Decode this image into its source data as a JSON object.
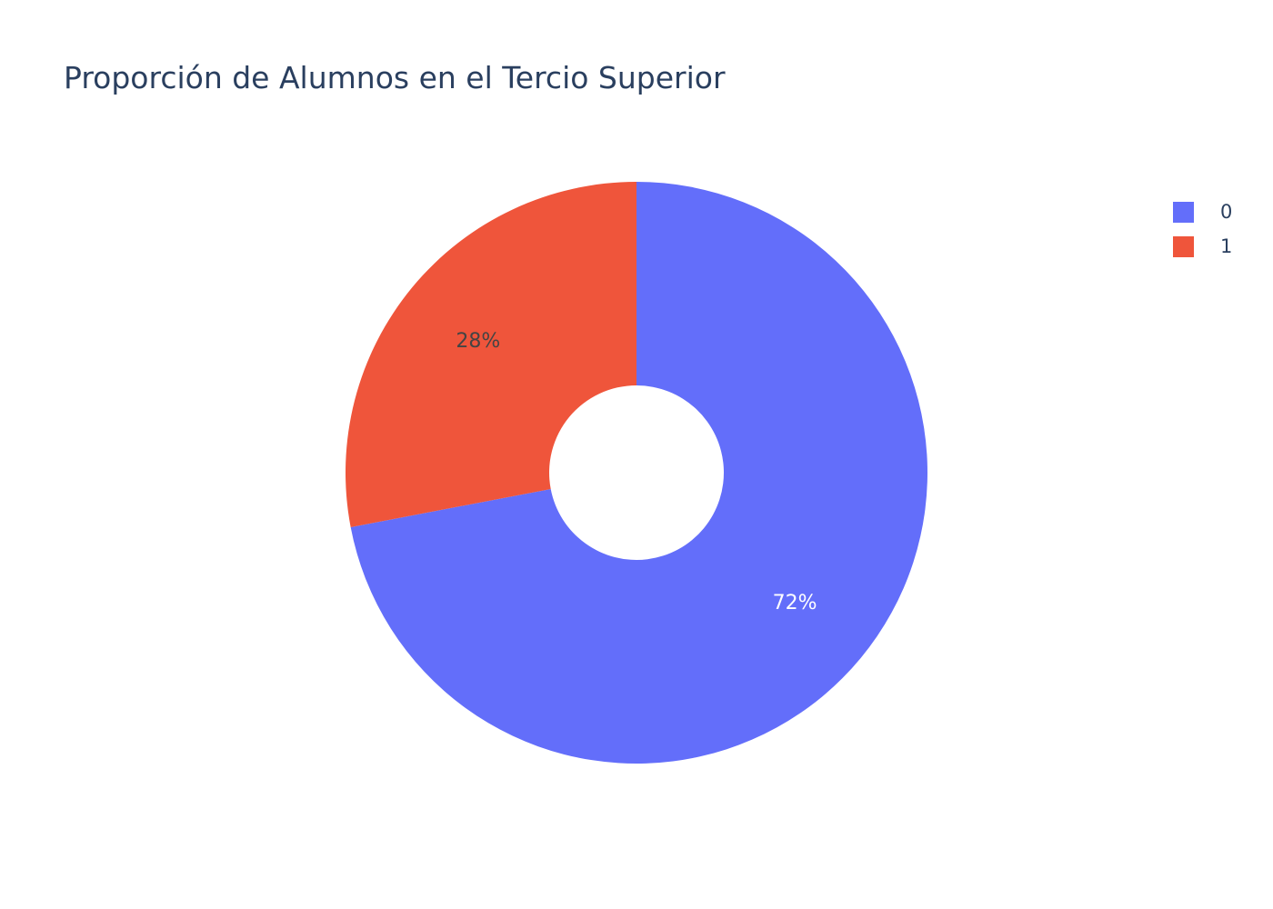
{
  "chart_data": {
    "type": "pie",
    "title": "Proporción de Alumnos en el Tercio Superior",
    "hole": 0.3,
    "legend_position": "top-right",
    "slices": [
      {
        "label": "0",
        "value": 72,
        "text": "72%",
        "color": "#636efa",
        "text_color": "#ffffff"
      },
      {
        "label": "1",
        "value": 28,
        "text": "28%",
        "color": "#ef553b",
        "text_color": "#444444"
      }
    ]
  }
}
